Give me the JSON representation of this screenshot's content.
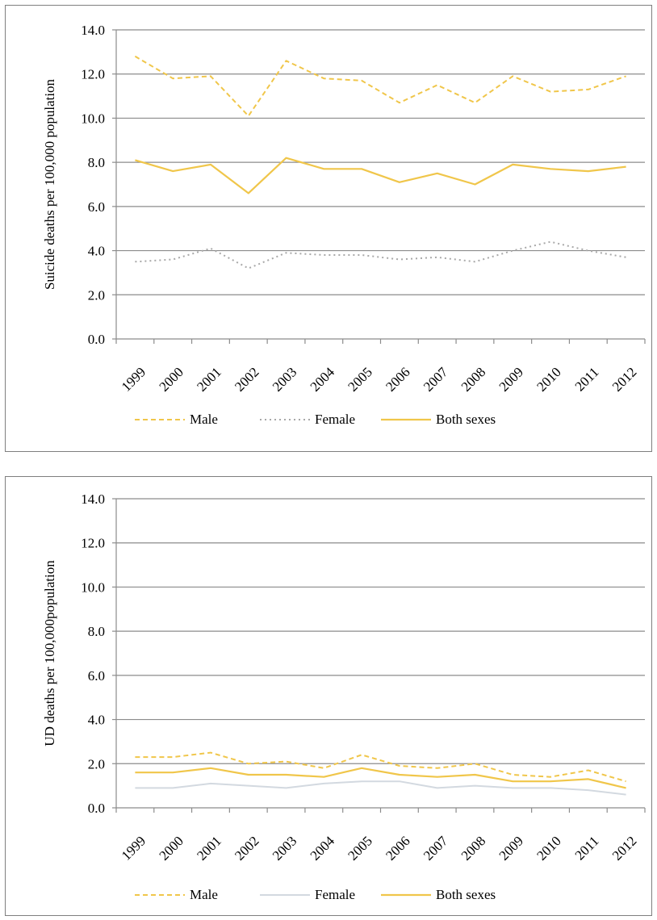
{
  "chart_data": [
    {
      "type": "line",
      "title": "",
      "xlabel": "",
      "ylabel": "Suicide deaths per 100,000 population",
      "ylim": [
        0,
        14
      ],
      "yticks": [
        "0.0",
        "2.0",
        "4.0",
        "6.0",
        "8.0",
        "10.0",
        "12.0",
        "14.0"
      ],
      "categories": [
        "1999",
        "2000",
        "2001",
        "2002",
        "2003",
        "2004",
        "2005",
        "2006",
        "2007",
        "2008",
        "2009",
        "2010",
        "2011",
        "2012"
      ],
      "grid": true,
      "legend_position": "bottom",
      "series": [
        {
          "name": "Male",
          "style": "dashed",
          "color": "#f0c64a",
          "values": [
            12.8,
            11.8,
            11.9,
            10.1,
            12.6,
            11.8,
            11.7,
            10.7,
            11.5,
            10.7,
            11.9,
            11.2,
            11.3,
            11.9
          ]
        },
        {
          "name": "Female",
          "style": "dotted",
          "color": "#a8a8a8",
          "values": [
            3.5,
            3.6,
            4.1,
            3.2,
            3.9,
            3.8,
            3.8,
            3.6,
            3.7,
            3.5,
            4.0,
            4.4,
            4.0,
            3.7
          ]
        },
        {
          "name": "Both sexes",
          "style": "solid",
          "color": "#f0c64a",
          "values": [
            8.1,
            7.6,
            7.9,
            6.6,
            8.2,
            7.7,
            7.7,
            7.1,
            7.5,
            7.0,
            7.9,
            7.7,
            7.6,
            7.8
          ]
        }
      ]
    },
    {
      "type": "line",
      "title": "",
      "xlabel": "",
      "ylabel": "UD deaths per 100,000population",
      "ylim": [
        0,
        14
      ],
      "yticks": [
        "0.0",
        "2.0",
        "4.0",
        "6.0",
        "8.0",
        "10.0",
        "12.0",
        "14.0"
      ],
      "categories": [
        "1999",
        "2000",
        "2001",
        "2002",
        "2003",
        "2004",
        "2005",
        "2006",
        "2007",
        "2008",
        "2009",
        "2010",
        "2011",
        "2012"
      ],
      "grid": true,
      "legend_position": "bottom",
      "series": [
        {
          "name": "Male",
          "style": "dashed",
          "color": "#f0c64a",
          "values": [
            2.3,
            2.3,
            2.5,
            2.0,
            2.1,
            1.8,
            2.4,
            1.9,
            1.8,
            2.0,
            1.5,
            1.4,
            1.7,
            1.2
          ]
        },
        {
          "name": "Female",
          "style": "solid-light",
          "color": "#d3d9e0",
          "values": [
            0.9,
            0.9,
            1.1,
            1.0,
            0.9,
            1.1,
            1.2,
            1.2,
            0.9,
            1.0,
            0.9,
            0.9,
            0.8,
            0.6
          ]
        },
        {
          "name": "Both sexes",
          "style": "solid",
          "color": "#f0c64a",
          "values": [
            1.6,
            1.6,
            1.8,
            1.5,
            1.5,
            1.4,
            1.8,
            1.5,
            1.4,
            1.5,
            1.2,
            1.2,
            1.3,
            0.9
          ]
        }
      ]
    }
  ]
}
